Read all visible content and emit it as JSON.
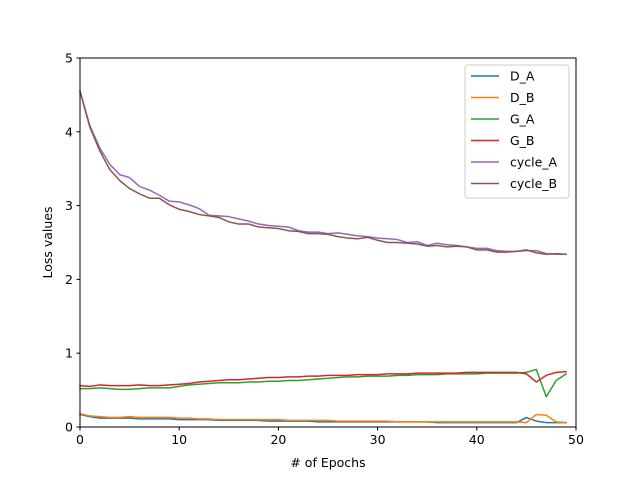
{
  "chart_data": {
    "type": "line",
    "title": "",
    "xlabel": "# of Epochs",
    "ylabel": "Loss values",
    "xlim": [
      0,
      50
    ],
    "ylim": [
      0,
      5
    ],
    "xticks": [
      0,
      10,
      20,
      30,
      40,
      50
    ],
    "yticks": [
      0,
      1,
      2,
      3,
      4,
      5
    ],
    "grid": false,
    "legend_position": "top-right",
    "x": [
      0,
      1,
      2,
      3,
      4,
      5,
      6,
      7,
      8,
      9,
      10,
      11,
      12,
      13,
      14,
      15,
      16,
      17,
      18,
      19,
      20,
      21,
      22,
      23,
      24,
      25,
      26,
      27,
      28,
      29,
      30,
      31,
      32,
      33,
      34,
      35,
      36,
      37,
      38,
      39,
      40,
      41,
      42,
      43,
      44,
      45,
      46,
      47,
      48,
      49
    ],
    "series": [
      {
        "name": "D_A",
        "color": "#1f77b4",
        "values": [
          0.17,
          0.14,
          0.12,
          0.12,
          0.12,
          0.12,
          0.11,
          0.11,
          0.11,
          0.11,
          0.1,
          0.1,
          0.1,
          0.1,
          0.09,
          0.09,
          0.09,
          0.09,
          0.09,
          0.08,
          0.08,
          0.08,
          0.08,
          0.08,
          0.07,
          0.07,
          0.07,
          0.07,
          0.07,
          0.07,
          0.07,
          0.07,
          0.07,
          0.07,
          0.07,
          0.07,
          0.06,
          0.06,
          0.06,
          0.06,
          0.06,
          0.06,
          0.06,
          0.06,
          0.06,
          0.13,
          0.08,
          0.06,
          0.06,
          0.06
        ]
      },
      {
        "name": "D_B",
        "color": "#ff7f0e",
        "values": [
          0.18,
          0.15,
          0.14,
          0.13,
          0.13,
          0.14,
          0.13,
          0.13,
          0.13,
          0.13,
          0.12,
          0.12,
          0.11,
          0.11,
          0.1,
          0.1,
          0.1,
          0.1,
          0.1,
          0.1,
          0.1,
          0.09,
          0.09,
          0.09,
          0.09,
          0.09,
          0.08,
          0.08,
          0.08,
          0.08,
          0.08,
          0.08,
          0.07,
          0.07,
          0.07,
          0.07,
          0.07,
          0.07,
          0.07,
          0.07,
          0.07,
          0.07,
          0.07,
          0.07,
          0.07,
          0.06,
          0.17,
          0.16,
          0.07,
          0.06
        ]
      },
      {
        "name": "G_A",
        "color": "#2ca02c",
        "values": [
          0.52,
          0.52,
          0.53,
          0.52,
          0.51,
          0.51,
          0.52,
          0.53,
          0.53,
          0.53,
          0.55,
          0.57,
          0.58,
          0.59,
          0.6,
          0.6,
          0.6,
          0.61,
          0.61,
          0.62,
          0.62,
          0.63,
          0.63,
          0.64,
          0.65,
          0.66,
          0.67,
          0.68,
          0.68,
          0.69,
          0.69,
          0.69,
          0.7,
          0.7,
          0.71,
          0.71,
          0.71,
          0.72,
          0.72,
          0.72,
          0.72,
          0.73,
          0.73,
          0.73,
          0.73,
          0.74,
          0.78,
          0.41,
          0.63,
          0.72
        ]
      },
      {
        "name": "G_B",
        "color": "#d62728",
        "values": [
          0.56,
          0.55,
          0.57,
          0.56,
          0.56,
          0.56,
          0.57,
          0.56,
          0.56,
          0.57,
          0.58,
          0.59,
          0.61,
          0.62,
          0.63,
          0.64,
          0.64,
          0.65,
          0.66,
          0.67,
          0.67,
          0.68,
          0.68,
          0.69,
          0.69,
          0.7,
          0.7,
          0.7,
          0.71,
          0.71,
          0.71,
          0.72,
          0.72,
          0.72,
          0.73,
          0.73,
          0.73,
          0.73,
          0.73,
          0.74,
          0.74,
          0.74,
          0.74,
          0.74,
          0.74,
          0.72,
          0.61,
          0.7,
          0.74,
          0.75
        ]
      },
      {
        "name": "cycle_A",
        "color": "#9467bd",
        "values": [
          4.55,
          4.08,
          3.78,
          3.56,
          3.42,
          3.38,
          3.26,
          3.21,
          3.14,
          3.06,
          3.05,
          3.01,
          2.96,
          2.87,
          2.86,
          2.85,
          2.82,
          2.79,
          2.75,
          2.73,
          2.72,
          2.71,
          2.66,
          2.64,
          2.64,
          2.62,
          2.63,
          2.61,
          2.59,
          2.58,
          2.56,
          2.55,
          2.54,
          2.5,
          2.51,
          2.46,
          2.49,
          2.47,
          2.46,
          2.44,
          2.42,
          2.42,
          2.39,
          2.38,
          2.38,
          2.39,
          2.39,
          2.35,
          2.34,
          2.34
        ]
      },
      {
        "name": "cycle_B",
        "color": "#8c564b",
        "values": [
          4.55,
          4.06,
          3.74,
          3.49,
          3.34,
          3.23,
          3.16,
          3.1,
          3.1,
          3.01,
          2.95,
          2.92,
          2.88,
          2.86,
          2.84,
          2.78,
          2.75,
          2.75,
          2.71,
          2.7,
          2.69,
          2.66,
          2.65,
          2.62,
          2.62,
          2.61,
          2.58,
          2.56,
          2.55,
          2.57,
          2.53,
          2.5,
          2.5,
          2.49,
          2.48,
          2.45,
          2.46,
          2.44,
          2.45,
          2.44,
          2.4,
          2.4,
          2.37,
          2.37,
          2.38,
          2.4,
          2.36,
          2.34,
          2.35,
          2.34
        ]
      }
    ]
  }
}
